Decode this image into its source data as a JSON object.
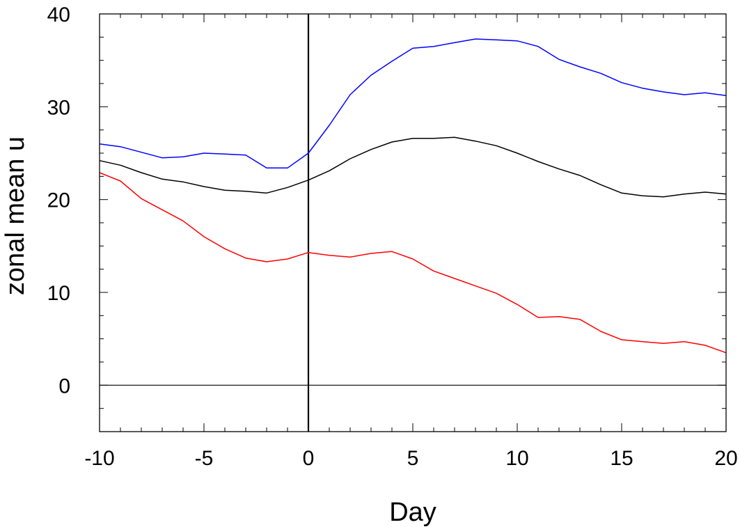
{
  "chart_data": {
    "type": "line",
    "title": "",
    "xlabel": "Day",
    "ylabel": "zonal mean u",
    "xlim": [
      -10,
      20
    ],
    "ylim": [
      -5,
      40
    ],
    "x_ticks": [
      -10,
      -5,
      0,
      5,
      10,
      15,
      20
    ],
    "x_tick_labels": [
      "-10",
      "-5",
      "0",
      "5",
      "10",
      "15",
      "20"
    ],
    "y_ticks": [
      0,
      10,
      20,
      30,
      40
    ],
    "y_tick_labels": [
      "0",
      "10",
      "20",
      "30",
      "40"
    ],
    "reference_lines": {
      "vertical_x": 0,
      "horizontal_y": 0
    },
    "grid": false,
    "legend": "none",
    "x": [
      -10,
      -9,
      -8,
      -7,
      -6,
      -5,
      -4,
      -3,
      -2,
      -1,
      0,
      1,
      2,
      3,
      4,
      5,
      6,
      7,
      8,
      9,
      10,
      11,
      12,
      13,
      14,
      15,
      16,
      17,
      18,
      19,
      20
    ],
    "series": [
      {
        "color": "#0000ff",
        "values": [
          26.0,
          25.7,
          25.1,
          24.5,
          24.6,
          25.0,
          24.9,
          24.8,
          23.4,
          23.4,
          25.0,
          28.0,
          31.3,
          33.4,
          34.9,
          36.3,
          36.5,
          36.9,
          37.3,
          37.2,
          37.1,
          36.5,
          35.1,
          34.3,
          33.6,
          32.6,
          32.0,
          31.6,
          31.3,
          31.5,
          31.2
        ]
      },
      {
        "color": "#000000",
        "values": [
          24.2,
          23.7,
          22.9,
          22.2,
          21.9,
          21.4,
          21.0,
          20.9,
          20.7,
          21.3,
          22.1,
          23.1,
          24.4,
          25.4,
          26.2,
          26.6,
          26.6,
          26.7,
          26.3,
          25.8,
          25.0,
          24.1,
          23.3,
          22.6,
          21.6,
          20.7,
          20.4,
          20.3,
          20.6,
          20.8,
          20.6
        ]
      },
      {
        "color": "#ff0000",
        "values": [
          22.9,
          22.0,
          20.1,
          18.9,
          17.7,
          16.0,
          14.7,
          13.7,
          13.3,
          13.6,
          14.3,
          14.0,
          13.8,
          14.2,
          14.4,
          13.6,
          12.3,
          11.5,
          10.7,
          9.9,
          8.7,
          7.3,
          7.4,
          7.1,
          5.8,
          4.9,
          4.7,
          4.5,
          4.7,
          4.3,
          3.5
        ]
      }
    ]
  }
}
